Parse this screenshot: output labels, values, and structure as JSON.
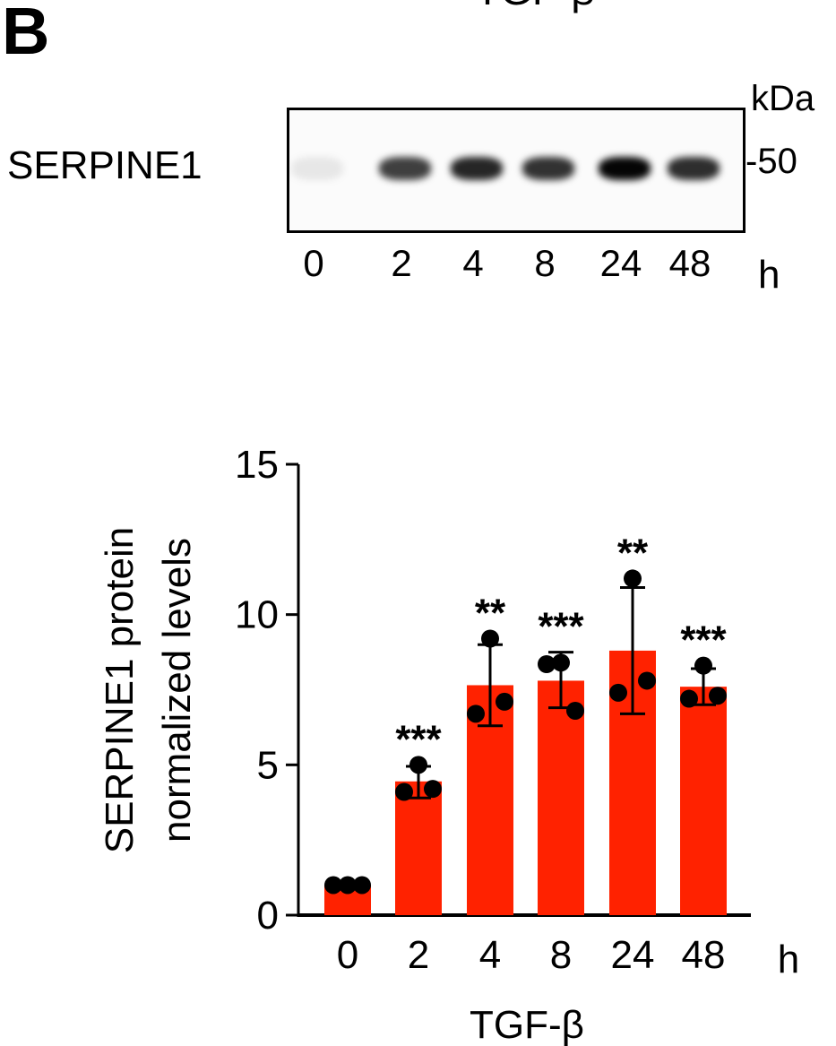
{
  "panel_letter": "B",
  "top_cut_text": "TGF-β",
  "blot": {
    "protein_label": "SERPINE1",
    "mw_unit": "kDa",
    "mw_marker": "-50",
    "lanes": [
      "0",
      "2",
      "4",
      "8",
      "24",
      "48"
    ],
    "time_unit": "h",
    "band_intensity": [
      0.08,
      0.75,
      0.85,
      0.8,
      0.98,
      0.82
    ]
  },
  "chart_data": {
    "type": "bar",
    "categories": [
      "0",
      "2",
      "4",
      "8",
      "24",
      "48"
    ],
    "values": [
      1.0,
      4.45,
      7.65,
      7.8,
      8.8,
      7.6
    ],
    "error_upper": [
      1.0,
      4.95,
      9.0,
      8.75,
      10.9,
      8.2
    ],
    "error_lower": [
      1.0,
      3.9,
      6.3,
      6.9,
      6.7,
      7.0
    ],
    "points": [
      [
        1.0,
        1.0,
        1.0
      ],
      [
        5.0,
        4.1,
        4.2
      ],
      [
        9.2,
        6.7,
        7.1
      ],
      [
        8.4,
        8.35,
        6.8
      ],
      [
        11.2,
        7.4,
        7.8
      ],
      [
        8.3,
        7.2,
        7.3
      ]
    ],
    "significance": [
      "",
      "***",
      "**",
      "***",
      "**",
      "***"
    ],
    "ylabel_lines": [
      "SERPINE1 protein",
      "normalized levels"
    ],
    "xlabel": "TGF-β",
    "x_unit": "h",
    "ylim": [
      0,
      15
    ],
    "yticks": [
      0,
      5,
      10,
      15
    ],
    "bar_color": "#ff2200",
    "grid": false
  }
}
